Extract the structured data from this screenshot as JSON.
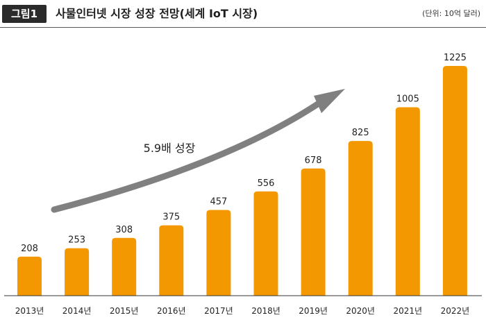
{
  "header": {
    "figure_label": "그림1",
    "title": "사물인터넷 시장 성장 전망(세계 IoT 시장)",
    "unit": "(단위: 10억 달러)"
  },
  "chart_data": {
    "type": "bar",
    "title": "사물인터넷 시장 성장 전망(세계 IoT 시장)",
    "unit": "(단위: 10억 달러)",
    "categories": [
      "2013년",
      "2014년",
      "2015년",
      "2016년",
      "2017년",
      "2018년",
      "2019년",
      "2020년",
      "2021년",
      "2022년"
    ],
    "values": [
      208,
      253,
      308,
      375,
      457,
      556,
      678,
      825,
      1005,
      1225
    ],
    "xlabel": "",
    "ylabel": "",
    "ylim": [
      0,
      1225
    ],
    "grid": false,
    "legend": "none",
    "bar_color": "#F39800",
    "arrow_color": "#808080",
    "annotation": "5.9배 성장"
  }
}
